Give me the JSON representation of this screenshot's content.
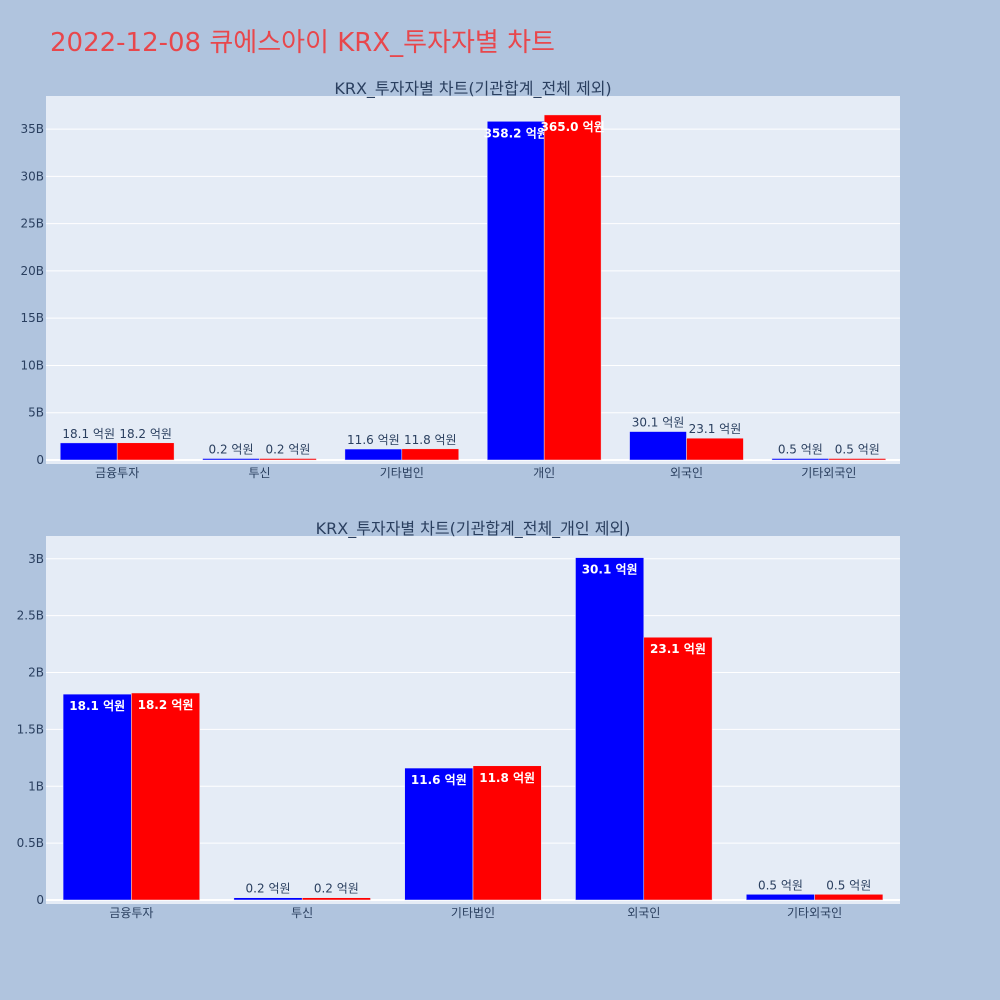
{
  "title": "2022-12-08 큐에스아이 KRX_투자자별 차트",
  "colors": {
    "series_a": "#0000ff",
    "series_b": "#ff0000",
    "plot_bg": "#e5ecf6",
    "page_bg": "#b0c4de",
    "title": "#e8474c"
  },
  "chart_data": [
    {
      "type": "bar",
      "title": "KRX_투자자별 차트(기관합계_전체 제외)",
      "categories": [
        "금융투자",
        "투신",
        "기타법인",
        "개인",
        "외국인",
        "기타외국인"
      ],
      "series": [
        {
          "values": [
            1810000000,
            20000000,
            1160000000,
            35820000000,
            3010000000,
            50000000
          ],
          "labels": [
            "18.1 억원",
            "0.2 억원",
            "11.6 억원",
            "358.2 억원",
            "30.1 억원",
            "0.5 억원"
          ]
        },
        {
          "values": [
            1820000000,
            20000000,
            1180000000,
            36500000000,
            2310000000,
            50000000
          ],
          "labels": [
            "18.2 억원",
            "0.2 억원",
            "11.8 억원",
            "365.0 억원",
            "23.1 억원",
            "0.5 억원"
          ]
        }
      ],
      "ylim": [
        0,
        38500000000
      ],
      "yticks": [
        0,
        5000000000,
        10000000000,
        15000000000,
        20000000000,
        25000000000,
        30000000000,
        35000000000
      ],
      "yticklabels": [
        "0",
        "5B",
        "10B",
        "15B",
        "20B",
        "25B",
        "30B",
        "35B"
      ],
      "grid": true
    },
    {
      "type": "bar",
      "title": "KRX_투자자별 차트(기관합계_전체_개인 제외)",
      "categories": [
        "금융투자",
        "투신",
        "기타법인",
        "외국인",
        "기타외국인"
      ],
      "series": [
        {
          "values": [
            1810000000,
            20000000,
            1160000000,
            3010000000,
            50000000
          ],
          "labels": [
            "18.1 억원",
            "0.2 억원",
            "11.6 억원",
            "30.1 억원",
            "0.5 억원"
          ]
        },
        {
          "values": [
            1820000000,
            20000000,
            1180000000,
            2310000000,
            50000000
          ],
          "labels": [
            "18.2 억원",
            "0.2 억원",
            "11.8 억원",
            "23.1 억원",
            "0.5 억원"
          ]
        }
      ],
      "ylim": [
        0,
        3200000000
      ],
      "yticks": [
        0,
        500000000,
        1000000000,
        1500000000,
        2000000000,
        2500000000,
        3000000000
      ],
      "yticklabels": [
        "0",
        "0.5B",
        "1B",
        "1.5B",
        "2B",
        "2.5B",
        "3B"
      ],
      "grid": true
    }
  ]
}
